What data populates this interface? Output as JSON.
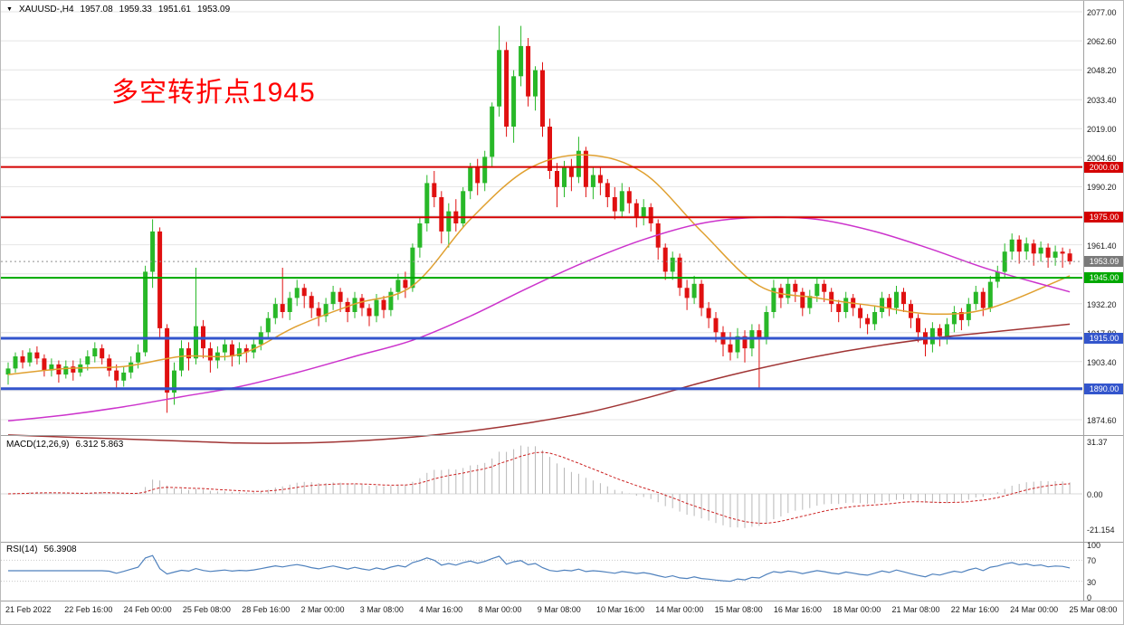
{
  "header": {
    "symbol_period": "XAUUSD-,H4",
    "open": "1957.08",
    "high": "1959.33",
    "low": "1951.61",
    "close": "1953.09"
  },
  "icons": {
    "chart_menu_arrow": "▼"
  },
  "annotation": {
    "text": "多空转折点1945",
    "color": "#FF0000"
  },
  "panels": {
    "macd": {
      "name": "MACD(12,26,9)",
      "values": "6.312 5.863",
      "axis_labels": [
        {
          "v": 31.37,
          "text": "31.37"
        },
        {
          "v": 0,
          "text": "0.00"
        },
        {
          "v": -21.154,
          "text": "-21.154"
        }
      ]
    },
    "rsi": {
      "name": "RSI(14)",
      "values": "56.3908",
      "axis_labels": [
        {
          "v": 100,
          "text": "100"
        },
        {
          "v": 70,
          "text": "70"
        },
        {
          "v": 30,
          "text": "30"
        },
        {
          "v": 0,
          "text": "0"
        }
      ],
      "level_lines": [
        70,
        30
      ]
    }
  },
  "chart_data": {
    "type": "candlestick",
    "symbol": "XAUUSD",
    "timeframe": "H4",
    "title": "XAUUSD-,H4 1957.08 1959.33 1951.61 1953.09",
    "colors": {
      "up": "#28B828",
      "down": "#E01010",
      "grid": "#E4E4E4",
      "macd_hist": "#B8B8B8",
      "macd_signal": "#CC2222",
      "rsi": "#4F81BD",
      "separator": "#A0A0A0",
      "current_price_badge": "#7A7A7A"
    },
    "y_axis": {
      "max": 2077.0,
      "min": 1874.6,
      "ticks": [
        {
          "v": 2077.0,
          "label": "2077.00"
        },
        {
          "v": 2062.6,
          "label": "2062.60"
        },
        {
          "v": 2048.2,
          "label": "2048.20"
        },
        {
          "v": 2033.4,
          "label": "2033.40"
        },
        {
          "v": 2019.0,
          "label": "2019.00"
        },
        {
          "v": 2004.6,
          "label": "2004.60"
        },
        {
          "v": 1990.2,
          "label": "1990.20"
        },
        {
          "v": 1975.8,
          "label": null
        },
        {
          "v": 1961.4,
          "label": "1961.40"
        },
        {
          "v": 1947.0,
          "label": null
        },
        {
          "v": 1932.2,
          "label": "1932.20"
        },
        {
          "v": 1917.8,
          "label": "1917.80"
        },
        {
          "v": 1903.4,
          "label": "1903.40"
        },
        {
          "v": 1889.0,
          "label": null
        },
        {
          "v": 1874.6,
          "label": "1874.60"
        }
      ]
    },
    "x_axis_labels": [
      "21 Feb 2022",
      "22 Feb 16:00",
      "24 Feb 00:00",
      "25 Feb 08:00",
      "28 Feb 16:00",
      "2 Mar 00:00",
      "3 Mar 08:00",
      "4 Mar 16:00",
      "8 Mar 00:00",
      "9 Mar 08:00",
      "10 Mar 16:00",
      "14 Mar 00:00",
      "15 Mar 08:00",
      "16 Mar 16:00",
      "18 Mar 00:00",
      "21 Mar 08:00",
      "22 Mar 16:00",
      "24 Mar 00:00",
      "25 Mar 08:00"
    ],
    "hlines": [
      {
        "v": 2000.0,
        "label": "2000.00",
        "color": "#D40000",
        "width": 2
      },
      {
        "v": 1975.0,
        "label": "1975.00",
        "color": "#D40000",
        "width": 2
      },
      {
        "v": 1945.0,
        "label": "1945.00",
        "color": "#00A800",
        "width": 2
      },
      {
        "v": 1915.0,
        "label": "1915.00",
        "color": "#3355CC",
        "width": 3
      },
      {
        "v": 1890.0,
        "label": "1890.00",
        "color": "#3355CC",
        "width": 3
      }
    ],
    "current_price": {
      "v": 1953.09,
      "label": "1953.09"
    },
    "moving_averages": [
      {
        "name": "ma-fast-orange",
        "color": "#E0A030",
        "points": [
          [
            0,
            1897
          ],
          [
            8,
            1900
          ],
          [
            16,
            1901
          ],
          [
            24,
            1906
          ],
          [
            32,
            1907
          ],
          [
            40,
            1921
          ],
          [
            48,
            1932
          ],
          [
            56,
            1941
          ],
          [
            64,
            1974
          ],
          [
            72,
            1999
          ],
          [
            80,
            2006
          ],
          [
            88,
            1997
          ],
          [
            96,
            1968
          ],
          [
            104,
            1941
          ],
          [
            112,
            1935
          ],
          [
            120,
            1931
          ],
          [
            128,
            1927
          ],
          [
            136,
            1930
          ],
          [
            147,
            1946
          ]
        ]
      },
      {
        "name": "ma-mid-magenta",
        "color": "#CC33CC",
        "points": [
          [
            0,
            1874
          ],
          [
            8,
            1877
          ],
          [
            16,
            1881
          ],
          [
            24,
            1886
          ],
          [
            32,
            1891
          ],
          [
            40,
            1898
          ],
          [
            48,
            1906
          ],
          [
            56,
            1914
          ],
          [
            64,
            1926
          ],
          [
            72,
            1940
          ],
          [
            80,
            1953
          ],
          [
            88,
            1964
          ],
          [
            96,
            1972
          ],
          [
            104,
            1975
          ],
          [
            112,
            1974
          ],
          [
            120,
            1968
          ],
          [
            128,
            1959
          ],
          [
            136,
            1949
          ],
          [
            147,
            1938
          ]
        ]
      },
      {
        "name": "ma-slow-darkred",
        "color": "#A03434",
        "points": [
          [
            0,
            1867
          ],
          [
            8,
            1866
          ],
          [
            16,
            1865
          ],
          [
            24,
            1864
          ],
          [
            32,
            1863
          ],
          [
            40,
            1863
          ],
          [
            48,
            1864
          ],
          [
            56,
            1866
          ],
          [
            64,
            1869
          ],
          [
            72,
            1873
          ],
          [
            80,
            1878
          ],
          [
            88,
            1885
          ],
          [
            96,
            1893
          ],
          [
            104,
            1900
          ],
          [
            112,
            1906
          ],
          [
            120,
            1911
          ],
          [
            128,
            1915
          ],
          [
            136,
            1918
          ],
          [
            147,
            1922
          ]
        ]
      }
    ],
    "candles": [
      [
        1897,
        1903,
        1892,
        1900
      ],
      [
        1900,
        1908,
        1898,
        1906
      ],
      [
        1906,
        1909,
        1900,
        1903
      ],
      [
        1903,
        1910,
        1901,
        1908
      ],
      [
        1908,
        1911,
        1902,
        1905
      ],
      [
        1905,
        1907,
        1896,
        1899
      ],
      [
        1899,
        1905,
        1896,
        1902
      ],
      [
        1902,
        1904,
        1893,
        1897
      ],
      [
        1897,
        1904,
        1895,
        1901
      ],
      [
        1901,
        1904,
        1894,
        1898
      ],
      [
        1898,
        1905,
        1896,
        1902
      ],
      [
        1902,
        1909,
        1899,
        1906
      ],
      [
        1906,
        1913,
        1903,
        1910
      ],
      [
        1910,
        1912,
        1902,
        1905
      ],
      [
        1905,
        1907,
        1896,
        1899
      ],
      [
        1899,
        1902,
        1890,
        1894
      ],
      [
        1894,
        1901,
        1891,
        1898
      ],
      [
        1898,
        1906,
        1895,
        1903
      ],
      [
        1903,
        1912,
        1900,
        1908
      ],
      [
        1908,
        1951,
        1906,
        1948
      ],
      [
        1948,
        1974,
        1940,
        1968
      ],
      [
        1968,
        1970,
        1915,
        1920
      ],
      [
        1920,
        1922,
        1878,
        1888
      ],
      [
        1888,
        1903,
        1882,
        1899
      ],
      [
        1899,
        1914,
        1896,
        1910
      ],
      [
        1910,
        1913,
        1899,
        1905
      ],
      [
        1905,
        1950,
        1902,
        1921
      ],
      [
        1921,
        1924,
        1905,
        1910
      ],
      [
        1910,
        1913,
        1898,
        1904
      ],
      [
        1904,
        1911,
        1900,
        1908
      ],
      [
        1908,
        1915,
        1904,
        1912
      ],
      [
        1912,
        1914,
        1901,
        1906
      ],
      [
        1906,
        1913,
        1902,
        1910
      ],
      [
        1910,
        1912,
        1903,
        1908
      ],
      [
        1908,
        1915,
        1905,
        1912
      ],
      [
        1912,
        1921,
        1909,
        1918
      ],
      [
        1918,
        1928,
        1915,
        1925
      ],
      [
        1925,
        1935,
        1922,
        1932
      ],
      [
        1932,
        1950,
        1925,
        1928
      ],
      [
        1928,
        1938,
        1924,
        1935
      ],
      [
        1935,
        1944,
        1931,
        1940
      ],
      [
        1940,
        1942,
        1930,
        1936
      ],
      [
        1936,
        1938,
        1925,
        1930
      ],
      [
        1930,
        1933,
        1921,
        1926
      ],
      [
        1926,
        1935,
        1923,
        1932
      ],
      [
        1932,
        1941,
        1929,
        1938
      ],
      [
        1938,
        1940,
        1928,
        1933
      ],
      [
        1933,
        1935,
        1923,
        1928
      ],
      [
        1928,
        1938,
        1925,
        1935
      ],
      [
        1935,
        1937,
        1926,
        1930
      ],
      [
        1930,
        1932,
        1921,
        1926
      ],
      [
        1926,
        1937,
        1923,
        1934
      ],
      [
        1934,
        1936,
        1925,
        1929
      ],
      [
        1929,
        1940,
        1926,
        1938
      ],
      [
        1938,
        1947,
        1934,
        1944
      ],
      [
        1944,
        1948,
        1935,
        1940
      ],
      [
        1940,
        1962,
        1938,
        1960
      ],
      [
        1960,
        1975,
        1955,
        1972
      ],
      [
        1972,
        1996,
        1968,
        1992
      ],
      [
        1992,
        1998,
        1980,
        1985
      ],
      [
        1985,
        1988,
        1962,
        1968
      ],
      [
        1968,
        1982,
        1960,
        1978
      ],
      [
        1978,
        1984,
        1968,
        1972
      ],
      [
        1972,
        1990,
        1970,
        1988
      ],
      [
        1988,
        2002,
        1984,
        2000
      ],
      [
        2000,
        2004,
        1986,
        1992
      ],
      [
        1992,
        2008,
        1988,
        2005
      ],
      [
        2005,
        2032,
        2000,
        2030
      ],
      [
        2030,
        2070,
        2025,
        2058
      ],
      [
        2058,
        2062,
        2015,
        2020
      ],
      [
        2020,
        2048,
        2012,
        2045
      ],
      [
        2045,
        2070,
        2040,
        2060
      ],
      [
        2060,
        2064,
        2030,
        2035
      ],
      [
        2035,
        2050,
        2028,
        2048
      ],
      [
        2048,
        2052,
        2015,
        2020
      ],
      [
        2020,
        2024,
        1994,
        1998
      ],
      [
        1998,
        2002,
        1980,
        1990
      ],
      [
        1990,
        2003,
        1985,
        2000
      ],
      [
        2000,
        2004,
        1988,
        1995
      ],
      [
        1995,
        2015,
        1992,
        2008
      ],
      [
        2008,
        2010,
        1985,
        1990
      ],
      [
        1990,
        2000,
        1984,
        1996
      ],
      [
        1996,
        2000,
        1986,
        1992
      ],
      [
        1992,
        1994,
        1980,
        1985
      ],
      [
        1985,
        1990,
        1974,
        1978
      ],
      [
        1978,
        1992,
        1975,
        1988
      ],
      [
        1988,
        1990,
        1977,
        1982
      ],
      [
        1982,
        1984,
        1970,
        1975
      ],
      [
        1975,
        1984,
        1971,
        1980
      ],
      [
        1980,
        1982,
        1968,
        1972
      ],
      [
        1972,
        1974,
        1954,
        1960
      ],
      [
        1960,
        1962,
        1944,
        1948
      ],
      [
        1948,
        1958,
        1944,
        1955
      ],
      [
        1955,
        1957,
        1936,
        1940
      ],
      [
        1940,
        1944,
        1929,
        1935
      ],
      [
        1935,
        1946,
        1932,
        1942
      ],
      [
        1942,
        1944,
        1926,
        1930
      ],
      [
        1930,
        1933,
        1920,
        1925
      ],
      [
        1925,
        1928,
        1913,
        1918
      ],
      [
        1918,
        1921,
        1906,
        1912
      ],
      [
        1912,
        1918,
        1904,
        1908
      ],
      [
        1908,
        1920,
        1905,
        1916
      ],
      [
        1916,
        1919,
        1903,
        1910
      ],
      [
        1910,
        1922,
        1906,
        1919
      ],
      [
        1919,
        1922,
        1890,
        1915
      ],
      [
        1915,
        1931,
        1912,
        1928
      ],
      [
        1928,
        1944,
        1925,
        1940
      ],
      [
        1940,
        1942,
        1930,
        1935
      ],
      [
        1935,
        1945,
        1932,
        1942
      ],
      [
        1942,
        1944,
        1933,
        1938
      ],
      [
        1938,
        1940,
        1926,
        1930
      ],
      [
        1930,
        1939,
        1927,
        1936
      ],
      [
        1936,
        1945,
        1933,
        1942
      ],
      [
        1942,
        1944,
        1933,
        1938
      ],
      [
        1938,
        1940,
        1928,
        1932
      ],
      [
        1932,
        1934,
        1923,
        1928
      ],
      [
        1928,
        1938,
        1925,
        1935
      ],
      [
        1935,
        1937,
        1926,
        1930
      ],
      [
        1930,
        1932,
        1920,
        1925
      ],
      [
        1925,
        1927,
        1917,
        1922
      ],
      [
        1922,
        1931,
        1919,
        1928
      ],
      [
        1928,
        1938,
        1925,
        1935
      ],
      [
        1935,
        1937,
        1926,
        1930
      ],
      [
        1930,
        1941,
        1927,
        1938
      ],
      [
        1938,
        1940,
        1928,
        1932
      ],
      [
        1932,
        1934,
        1920,
        1925
      ],
      [
        1925,
        1927,
        1913,
        1918
      ],
      [
        1918,
        1920,
        1906,
        1912
      ],
      [
        1912,
        1923,
        1908,
        1920
      ],
      [
        1920,
        1922,
        1911,
        1916
      ],
      [
        1916,
        1925,
        1912,
        1922
      ],
      [
        1922,
        1931,
        1918,
        1928
      ],
      [
        1928,
        1930,
        1919,
        1924
      ],
      [
        1924,
        1935,
        1921,
        1932
      ],
      [
        1932,
        1941,
        1929,
        1938
      ],
      [
        1938,
        1940,
        1926,
        1930
      ],
      [
        1930,
        1946,
        1928,
        1943
      ],
      [
        1943,
        1951,
        1940,
        1948
      ],
      [
        1948,
        1962,
        1945,
        1958
      ],
      [
        1958,
        1967,
        1954,
        1964
      ],
      [
        1964,
        1966,
        1952,
        1958
      ],
      [
        1958,
        1965,
        1954,
        1962
      ],
      [
        1962,
        1964,
        1951,
        1957
      ],
      [
        1957,
        1963,
        1953,
        1960
      ],
      [
        1960,
        1962,
        1950,
        1955
      ],
      [
        1955,
        1961,
        1951,
        1958
      ],
      [
        1958,
        1960,
        1950,
        1957
      ],
      [
        1957.08,
        1959.33,
        1951.61,
        1953.09
      ]
    ]
  }
}
